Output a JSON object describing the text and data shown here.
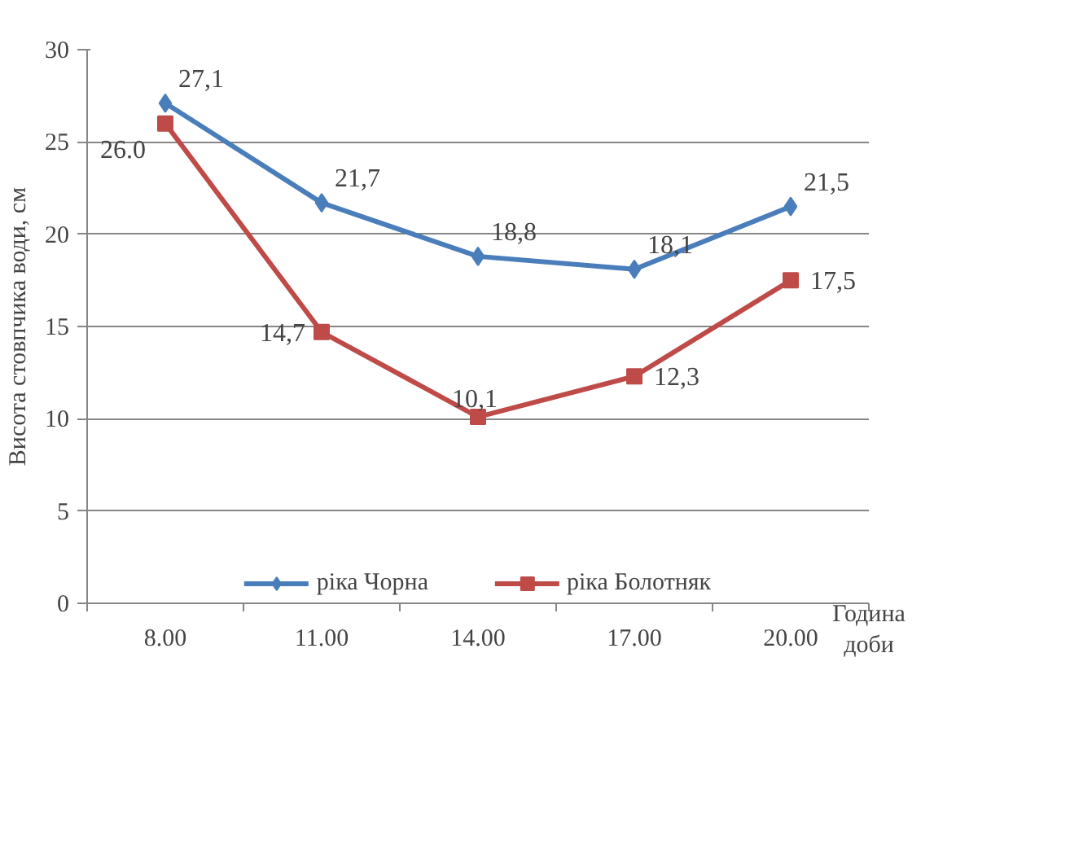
{
  "chart_data": {
    "type": "line",
    "categories": [
      "8.00",
      "11.00",
      "14.00",
      "17.00",
      "20.00"
    ],
    "ylabel": "Висота стовпчика води, см",
    "xlabel": "Година\nдоби",
    "ylim": [
      0,
      30
    ],
    "yticks": [
      0,
      5,
      10,
      15,
      20,
      25,
      30
    ],
    "grid": "y",
    "legend": "bottom",
    "data_labels": true,
    "series": [
      {
        "name": "ріка Чорна",
        "color": "#4a7ebb",
        "marker": "diamond",
        "values": [
          27.1,
          21.7,
          18.8,
          18.1,
          21.5
        ],
        "value_labels": [
          "27,1",
          "21,7",
          "18,8",
          "18,1",
          "21,5"
        ]
      },
      {
        "name": "ріка Болотняк",
        "color": "#be4b48",
        "marker": "square",
        "values": [
          26.0,
          14.7,
          10.1,
          12.3,
          17.5
        ],
        "value_labels": [
          "26.0",
          "14,7",
          "10,1",
          "12,3",
          "17,5"
        ]
      }
    ]
  }
}
